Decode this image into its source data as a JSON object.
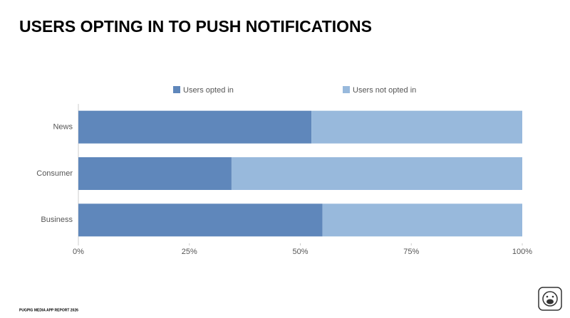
{
  "chart_data": {
    "type": "stacked-bar-horizontal",
    "title": "USERS OPTING IN TO PUSH NOTIFICATIONS",
    "footer": "PUGPIG MEDIA APP REPORT 2026",
    "categories": [
      "News",
      "Consumer",
      "Business"
    ],
    "series": [
      {
        "name": "Users opted in",
        "color": "#5f87bb",
        "values": [
          52.5,
          34.5,
          55
        ]
      },
      {
        "name": "Users not opted in",
        "color": "#98b9dc",
        "values": [
          47.5,
          65.5,
          45
        ]
      }
    ],
    "xlim": [
      0,
      100
    ],
    "xticks": [
      {
        "value": 0,
        "label": "0%"
      },
      {
        "value": 25,
        "label": "25%"
      },
      {
        "value": 50,
        "label": "50%"
      },
      {
        "value": 75,
        "label": "75%"
      },
      {
        "value": 100,
        "label": "100%"
      }
    ],
    "legend": "top"
  }
}
